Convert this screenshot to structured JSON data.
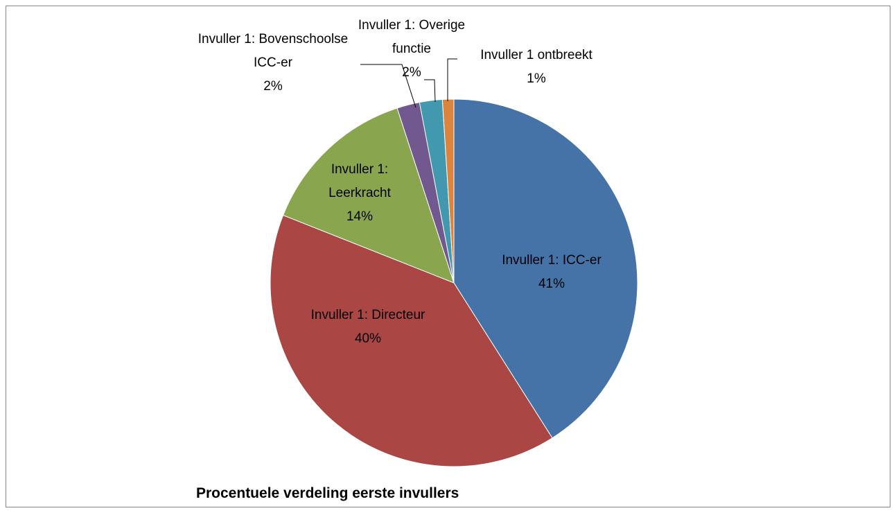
{
  "chart_data": {
    "type": "pie",
    "title": "Procentuele verdeling eerste invullers",
    "categories": [
      "Invuller 1: ICC-er",
      "Invuller 1: Directeur",
      "Invuller 1: Leerkracht",
      "Invuller 1: Bovenschoolse ICC-er",
      "Invuller 1: Overige functie",
      "Invuller 1 ontbreekt"
    ],
    "values": [
      41,
      40,
      14,
      2,
      2,
      1
    ],
    "value_labels": [
      "41%",
      "40%",
      "14%",
      "2%",
      "2%",
      "1%"
    ],
    "colors": [
      "#4572a7",
      "#aa4643",
      "#89a54e",
      "#71588f",
      "#4198af",
      "#db843d"
    ]
  }
}
